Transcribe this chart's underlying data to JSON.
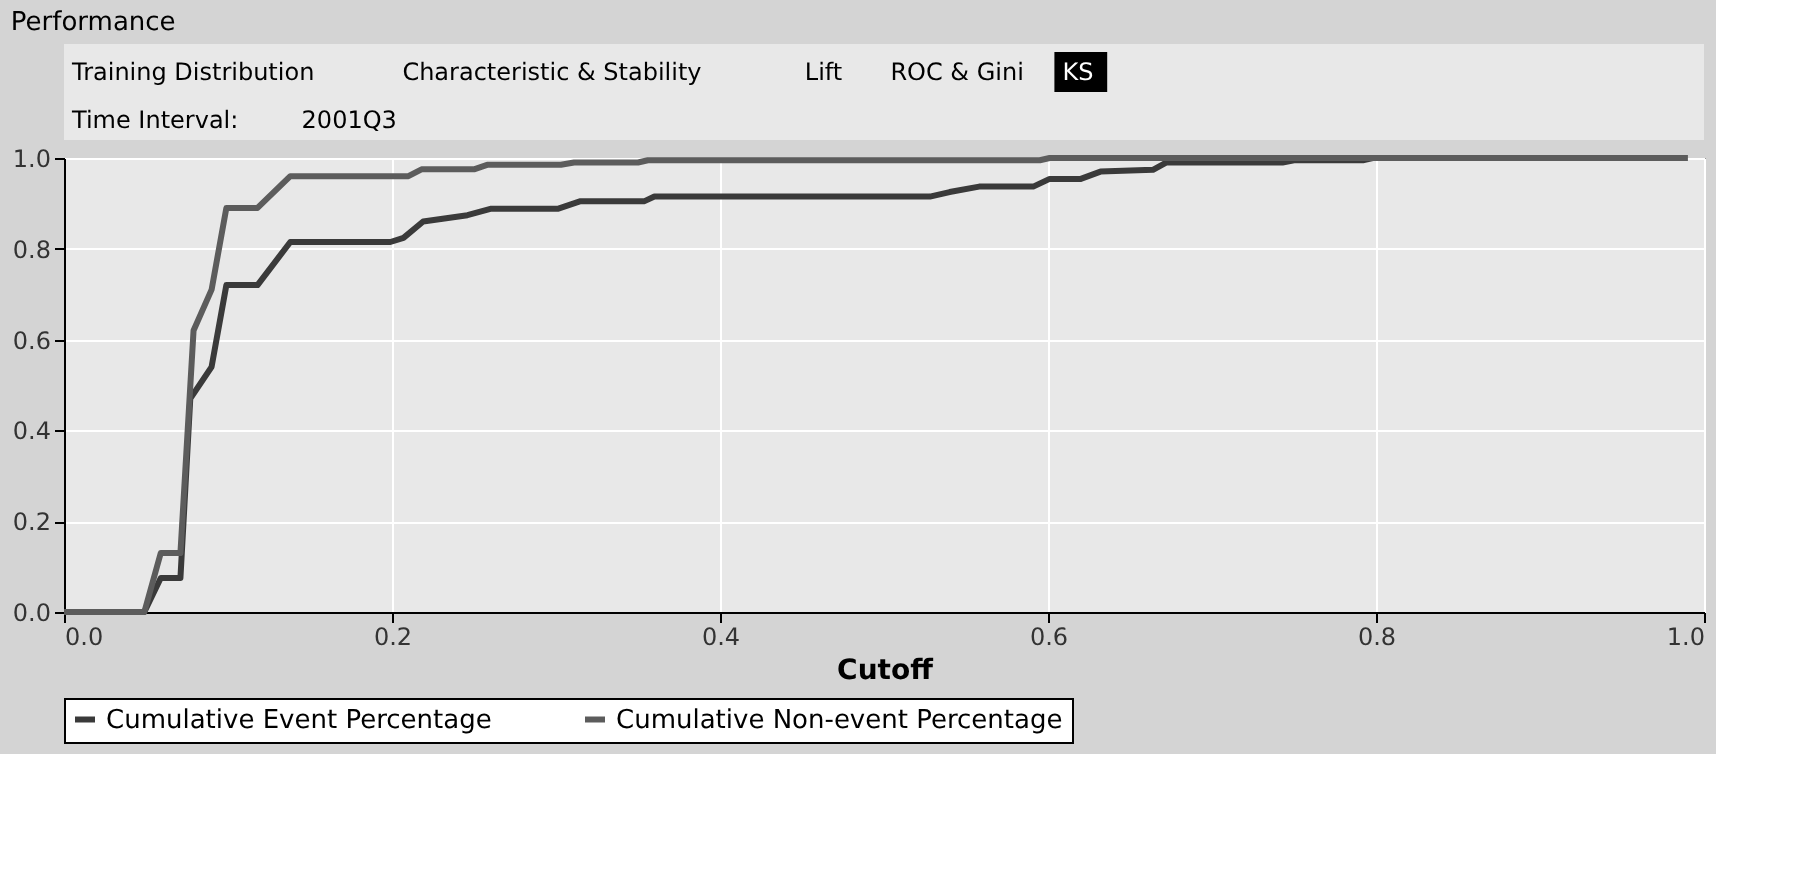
{
  "chart_data": {
    "type": "line",
    "title": "Performance",
    "xlabel": "Cutoff",
    "annotations": [
      "Training Distribution",
      "Characteristic & Stability",
      "Lift",
      "ROC & Gini",
      "KS",
      "Time Interval:",
      "2001Q3"
    ],
    "series": [
      {
        "name": "Cumulative Event Percentage",
        "color": "#3a3a3a",
        "x": [
          0,
          0.049,
          0.059,
          0.071,
          0.077,
          0.09,
          0.099,
          0.118,
          0.138,
          0.199,
          0.207,
          0.219,
          0.246,
          0.26,
          0.301,
          0.315,
          0.354,
          0.36,
          0.528,
          0.54,
          0.558,
          0.591,
          0.601,
          0.62,
          0.632,
          0.664,
          0.672,
          0.743,
          0.75,
          0.792,
          0.798,
          0.99
        ],
        "values": [
          0,
          0,
          0.075,
          0.075,
          0.47,
          0.54,
          0.72,
          0.72,
          0.815,
          0.815,
          0.824,
          0.86,
          0.874,
          0.888,
          0.888,
          0.905,
          0.905,
          0.915,
          0.915,
          0.925,
          0.937,
          0.937,
          0.954,
          0.954,
          0.97,
          0.974,
          0.99,
          0.99,
          0.995,
          0.995,
          1.0,
          1.0
        ]
      },
      {
        "name": "Cumulative Non-event Percentage",
        "color": "#5c5c5c",
        "x": [
          0,
          0.049,
          0.059,
          0.071,
          0.079,
          0.09,
          0.099,
          0.118,
          0.138,
          0.21,
          0.218,
          0.25,
          0.258,
          0.303,
          0.311,
          0.35,
          0.356,
          0.595,
          0.601,
          0.99
        ],
        "values": [
          0,
          0,
          0.13,
          0.13,
          0.62,
          0.71,
          0.89,
          0.89,
          0.96,
          0.96,
          0.975,
          0.975,
          0.985,
          0.985,
          0.99,
          0.99,
          0.995,
          0.995,
          1.0,
          1.0
        ]
      }
    ],
    "xlim": [
      0,
      1.0
    ],
    "xticks": [
      {
        "value": 0,
        "label": "0.0"
      },
      0.2,
      0.4,
      0.6,
      0.8,
      {
        "value": 1,
        "label": "1.0"
      }
    ],
    "ylim": [
      0,
      1.0
    ],
    "yticks": [
      {
        "value": 0,
        "label": "0.0"
      },
      0.2,
      0.4,
      0.6,
      0.8,
      {
        "value": 1,
        "label": "1.0"
      }
    ],
    "grid": true,
    "legend": "bottom",
    "line_style": "solid",
    "marker": "none"
  }
}
